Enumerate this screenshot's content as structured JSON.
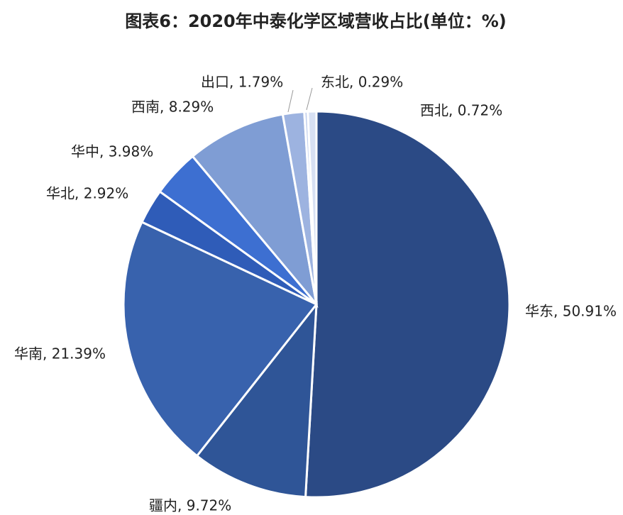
{
  "chart_data": {
    "type": "pie",
    "title": "图表6：2020年中泰化学区域营收占比(单位：%)",
    "values": [
      50.91,
      9.72,
      21.39,
      2.92,
      3.98,
      8.29,
      1.79,
      0.29,
      0.72
    ],
    "value_labels": [
      "华东, 50.91%",
      "疆内, 9.72%",
      "华南, 21.39%",
      "华北, 2.92%",
      "华中, 3.98%",
      "西南, 8.29%",
      "出口, 1.79%",
      "东北, 0.29%",
      "西北, 0.72%"
    ],
    "colors": [
      "#2b4a85",
      "#2f5597",
      "#3862ad",
      "#2f5cb8",
      "#3d6fd1",
      "#7f9dd4",
      "#9db3e0",
      "#c5d2ee",
      "#d7e0f3"
    ]
  }
}
